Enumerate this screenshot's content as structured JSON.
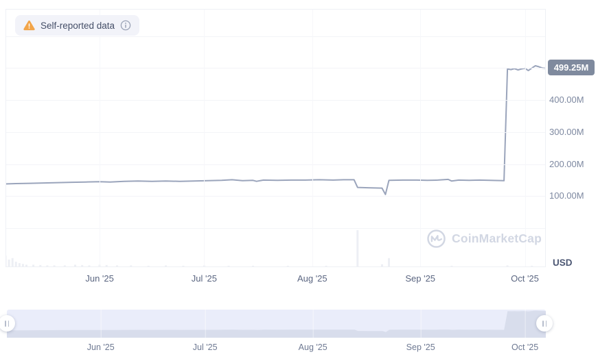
{
  "colors": {
    "line": "#9aa4bb",
    "grid_horizontal": "#f3f4f8",
    "grid_vertical": "#f6f7fa",
    "panel_border": "#eef0f5",
    "volume_bar": "#edeff4",
    "value_badge_bg": "#7f8a9e",
    "value_badge_text": "#ffffff",
    "y_label": "#7d88a0",
    "x_label": "#5a6580",
    "warning_orange": "#f2a54a",
    "badge_pill_bg": "#f2f3f9",
    "brush_band": "#eaedfa",
    "brush_area_fill": "#d8ddec",
    "watermark": "#d2d7e3"
  },
  "legend_badge": {
    "label": "Self-reported data",
    "warning_icon": "warning-triangle",
    "info_icon": "info-circle"
  },
  "watermark": {
    "text": "CoinMarketCap",
    "icon": "coinmarketcap-logo"
  },
  "y_axis": {
    "unit": "USD",
    "current": {
      "label": "499.25M",
      "value_musd": 499.25
    }
  },
  "chart_data": {
    "type": "line",
    "x_domain": [
      "2025-05-05",
      "2025-10-07"
    ],
    "ylim_musd": [
      0,
      680
    ],
    "grid": true,
    "legend_position": "none",
    "y_ticks": [
      {
        "value": 400,
        "label": "400.00M"
      },
      {
        "value": 300,
        "label": "300.00M"
      },
      {
        "value": 200,
        "label": "200.00M"
      },
      {
        "value": 100,
        "label": "100.00M"
      }
    ],
    "y_grid_values": [
      600,
      500,
      400,
      300,
      200,
      100,
      0
    ],
    "x_ticks": [
      {
        "date": "2025-06-01",
        "label": "Jun '25"
      },
      {
        "date": "2025-07-01",
        "label": "Jul '25"
      },
      {
        "date": "2025-08-01",
        "label": "Aug '25"
      },
      {
        "date": "2025-09-01",
        "label": "Sep '25"
      },
      {
        "date": "2025-10-01",
        "label": "Oct '25"
      }
    ],
    "series": [
      {
        "name": "self-reported-market-cap",
        "unit": "USD millions",
        "points": [
          [
            "2025-05-05",
            138
          ],
          [
            "2025-05-08",
            139
          ],
          [
            "2025-05-12",
            140
          ],
          [
            "2025-05-16",
            141
          ],
          [
            "2025-05-20",
            142
          ],
          [
            "2025-05-24",
            143
          ],
          [
            "2025-05-28",
            144
          ],
          [
            "2025-06-01",
            145
          ],
          [
            "2025-06-04",
            144
          ],
          [
            "2025-06-08",
            146
          ],
          [
            "2025-06-12",
            147
          ],
          [
            "2025-06-16",
            146
          ],
          [
            "2025-06-20",
            147
          ],
          [
            "2025-06-24",
            146
          ],
          [
            "2025-06-28",
            147
          ],
          [
            "2025-07-02",
            148
          ],
          [
            "2025-07-06",
            149
          ],
          [
            "2025-07-09",
            151
          ],
          [
            "2025-07-12",
            148
          ],
          [
            "2025-07-15",
            149
          ],
          [
            "2025-07-16",
            146
          ],
          [
            "2025-07-18",
            150
          ],
          [
            "2025-07-22",
            149
          ],
          [
            "2025-07-26",
            150
          ],
          [
            "2025-07-30",
            150
          ],
          [
            "2025-08-03",
            151
          ],
          [
            "2025-08-07",
            150
          ],
          [
            "2025-08-10",
            151
          ],
          [
            "2025-08-13",
            151
          ],
          [
            "2025-08-14",
            127
          ],
          [
            "2025-08-17",
            126
          ],
          [
            "2025-08-21",
            125
          ],
          [
            "2025-08-22",
            105
          ],
          [
            "2025-08-23",
            149
          ],
          [
            "2025-08-27",
            150
          ],
          [
            "2025-08-31",
            150
          ],
          [
            "2025-09-03",
            149
          ],
          [
            "2025-09-06",
            150
          ],
          [
            "2025-09-09",
            152
          ],
          [
            "2025-09-10",
            147
          ],
          [
            "2025-09-12",
            150
          ],
          [
            "2025-09-15",
            149
          ],
          [
            "2025-09-18",
            150
          ],
          [
            "2025-09-21",
            149
          ],
          [
            "2025-09-25",
            148
          ],
          [
            "2025-09-26",
            497
          ],
          [
            "2025-09-27",
            495
          ],
          [
            "2025-09-28",
            498
          ],
          [
            "2025-09-29",
            494
          ],
          [
            "2025-09-30",
            497
          ],
          [
            "2025-10-01",
            499
          ],
          [
            "2025-10-02",
            492
          ],
          [
            "2025-10-03",
            500
          ],
          [
            "2025-10-04",
            507
          ],
          [
            "2025-10-05",
            504
          ],
          [
            "2025-10-06",
            500
          ],
          [
            "2025-10-07",
            499.25
          ]
        ]
      }
    ],
    "volume_bars": {
      "note": "unlabeled mini volume bars, heights relative to tallest (=100)",
      "points": [
        [
          "2025-05-05",
          30
        ],
        [
          "2025-05-06",
          19
        ],
        [
          "2025-05-07",
          23
        ],
        [
          "2025-05-08",
          13
        ],
        [
          "2025-05-09",
          9
        ],
        [
          "2025-05-10",
          7
        ],
        [
          "2025-05-11",
          5
        ],
        [
          "2025-05-13",
          5
        ],
        [
          "2025-05-15",
          4
        ],
        [
          "2025-05-17",
          3
        ],
        [
          "2025-05-19",
          3
        ],
        [
          "2025-05-22",
          3
        ],
        [
          "2025-05-25",
          5
        ],
        [
          "2025-05-27",
          4
        ],
        [
          "2025-05-29",
          3
        ],
        [
          "2025-06-01",
          5
        ],
        [
          "2025-06-03",
          4
        ],
        [
          "2025-06-06",
          3
        ],
        [
          "2025-06-10",
          3
        ],
        [
          "2025-06-15",
          2
        ],
        [
          "2025-06-20",
          3
        ],
        [
          "2025-06-25",
          2
        ],
        [
          "2025-07-01",
          3
        ],
        [
          "2025-07-08",
          2
        ],
        [
          "2025-07-15",
          2
        ],
        [
          "2025-07-25",
          2
        ],
        [
          "2025-08-05",
          2
        ],
        [
          "2025-08-14",
          100
        ],
        [
          "2025-08-21",
          6
        ],
        [
          "2025-08-23",
          23
        ],
        [
          "2025-09-10",
          2
        ],
        [
          "2025-09-26",
          3
        ],
        [
          "2025-10-03",
          2
        ]
      ]
    }
  },
  "brush": {
    "handle_icon": "drag-handle-grip"
  }
}
